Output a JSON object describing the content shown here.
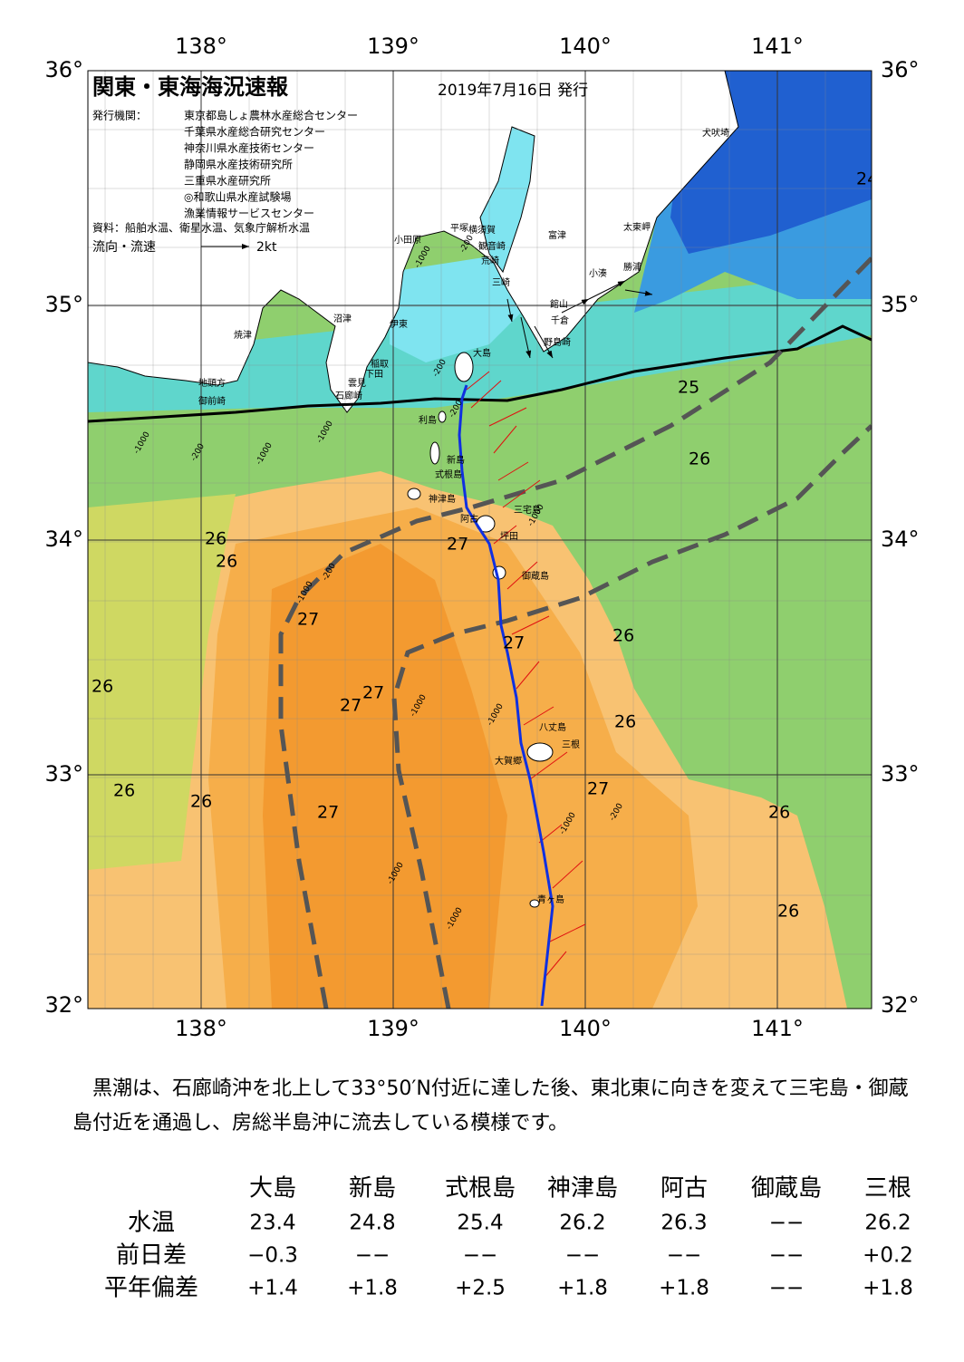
{
  "header": {
    "title": "関東・東海海況速報",
    "date": "2019年7月16日 発行",
    "issuer_label": "発行機関：",
    "issuers": [
      "東京都島しょ農林水産総合センター",
      "千葉県水産総合研究センター",
      "神奈川県水産技術センター",
      "静岡県水産技術研究所",
      "三重県水産研究所",
      "◎和歌山県水産試験場",
      "漁業情報サービスセンター"
    ],
    "source": "資料：船舶水温、衛星水温、気象庁解析水温",
    "legend_label": "流向・流速",
    "legend_speed": "2kt"
  },
  "map": {
    "lon_ticks": [
      {
        "value": 138,
        "label": "138°"
      },
      {
        "value": 139,
        "label": "139°"
      },
      {
        "value": 140,
        "label": "140°"
      },
      {
        "value": 141,
        "label": "141°"
      }
    ],
    "lat_ticks": [
      {
        "value": 36,
        "label": "36°"
      },
      {
        "value": 35,
        "label": "35°"
      },
      {
        "value": 34,
        "label": "34°"
      },
      {
        "value": 33,
        "label": "33°"
      },
      {
        "value": 32,
        "label": "32°"
      }
    ],
    "place_names": [
      "犬吠埼",
      "太東岬",
      "勝浦",
      "小湊",
      "館山",
      "千倉",
      "野島崎",
      "富津",
      "横須賀",
      "観音崎",
      "荒崎",
      "三崎",
      "平塚",
      "小田原",
      "沼津",
      "伊東",
      "焼津",
      "稲取",
      "下田",
      "雲見",
      "石廊崎",
      "地頭方",
      "御前崎",
      "大島",
      "利島",
      "新島",
      "式根島",
      "神津島",
      "阿古",
      "三宅島",
      "坪田",
      "御蔵島",
      "八丈島",
      "三根",
      "大賀郷",
      "青ヶ島"
    ],
    "temperature_labels": [
      24,
      25,
      26,
      26,
      26,
      27,
      27,
      27,
      26,
      26,
      27,
      27,
      26,
      26,
      26,
      27,
      27,
      26,
      26
    ],
    "depth_labels": [
      "-1000",
      "-200",
      "-200",
      "-200",
      "-1000",
      "-200",
      "-1000",
      "-1000",
      "-200",
      "-1000",
      "-1000",
      "-1000",
      "-1000",
      "-200",
      "-1000",
      "-1000",
      "-1000"
    ]
  },
  "summary": "黒潮は、石廊崎沖を北上して33°50′N付近に達した後、東北東に向きを変えて三宅島・御蔵島付近を通過し、房総半島沖に流去している模様です。",
  "table": {
    "columns": [
      "大島",
      "新島",
      "式根島",
      "神津島",
      "阿古",
      "御蔵島",
      "三根"
    ],
    "rows": [
      {
        "label": "水温",
        "values": [
          "23.4",
          "24.8",
          "25.4",
          "26.2",
          "26.3",
          "−−",
          "26.2"
        ]
      },
      {
        "label": "前日差",
        "values": [
          "−0.3",
          "−−",
          "−−",
          "−−",
          "−−",
          "−−",
          "+0.2"
        ]
      },
      {
        "label": "平年偏差",
        "values": [
          "+1.4",
          "+1.8",
          "+2.5",
          "+1.8",
          "+1.8",
          "−−",
          "+1.8"
        ]
      }
    ]
  }
}
